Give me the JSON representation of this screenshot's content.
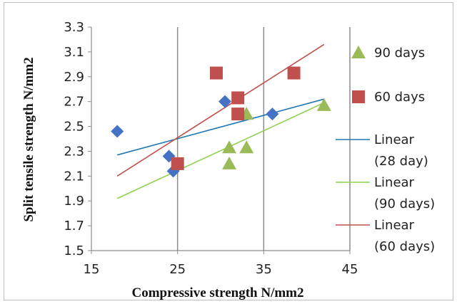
{
  "chart_data": {
    "type": "scatter",
    "xlabel": "Compressive strength N/mm2",
    "ylabel": "Split tensile strength N/mm2",
    "xlim": [
      15,
      45
    ],
    "ylim": [
      1.5,
      3.3
    ],
    "x_ticks": [
      "15",
      "25",
      "35",
      "45"
    ],
    "y_ticks": [
      "1.5",
      "1.7",
      "1.9",
      "2.1",
      "2.3",
      "2.5",
      "2.7",
      "2.9",
      "3.1",
      "3.3"
    ],
    "vertical_grid": true,
    "legend_position": "right",
    "series": [
      {
        "marker": "diamond",
        "color": "#4472c4",
        "points": [
          [
            18,
            2.46
          ],
          [
            24,
            2.26
          ],
          [
            24.5,
            2.14
          ],
          [
            30.5,
            2.7
          ],
          [
            36,
            2.6
          ]
        ]
      },
      {
        "name": "90 days",
        "marker": "triangle",
        "color": "#9bbb59",
        "points": [
          [
            31,
            2.33
          ],
          [
            31,
            2.2
          ],
          [
            33,
            2.33
          ],
          [
            33,
            2.6
          ],
          [
            42,
            2.67
          ]
        ]
      },
      {
        "name": "60 days",
        "marker": "square",
        "color": "#c0504d",
        "points": [
          [
            25,
            2.2
          ],
          [
            29.5,
            2.93
          ],
          [
            32,
            2.73
          ],
          [
            32,
            2.6
          ],
          [
            38.5,
            2.93
          ]
        ]
      }
    ],
    "trendlines": [
      {
        "name": "Linear (28 day)",
        "color": "#1f77b4",
        "from": [
          18,
          2.27
        ],
        "to": [
          42,
          2.72
        ]
      },
      {
        "name": "Linear (90 days)",
        "color": "#92d050",
        "from": [
          18,
          1.92
        ],
        "to": [
          42,
          2.69
        ]
      },
      {
        "name": "Linear (60 days)",
        "color": "#c0504d",
        "from": [
          18,
          2.1
        ],
        "to": [
          42,
          3.16
        ]
      }
    ],
    "legend": [
      {
        "kind": "marker",
        "marker": "triangle",
        "color": "#9bbb59",
        "lines": [
          "90 days"
        ]
      },
      {
        "kind": "marker",
        "marker": "square",
        "color": "#c0504d",
        "lines": [
          "60 days"
        ]
      },
      {
        "kind": "line",
        "color": "#1f77b4",
        "lines": [
          "Linear",
          "(28 day)"
        ]
      },
      {
        "kind": "line",
        "color": "#92d050",
        "lines": [
          "Linear",
          "(90 days)"
        ]
      },
      {
        "kind": "line",
        "color": "#c0504d",
        "lines": [
          "Linear",
          "(60 days)"
        ]
      }
    ]
  }
}
